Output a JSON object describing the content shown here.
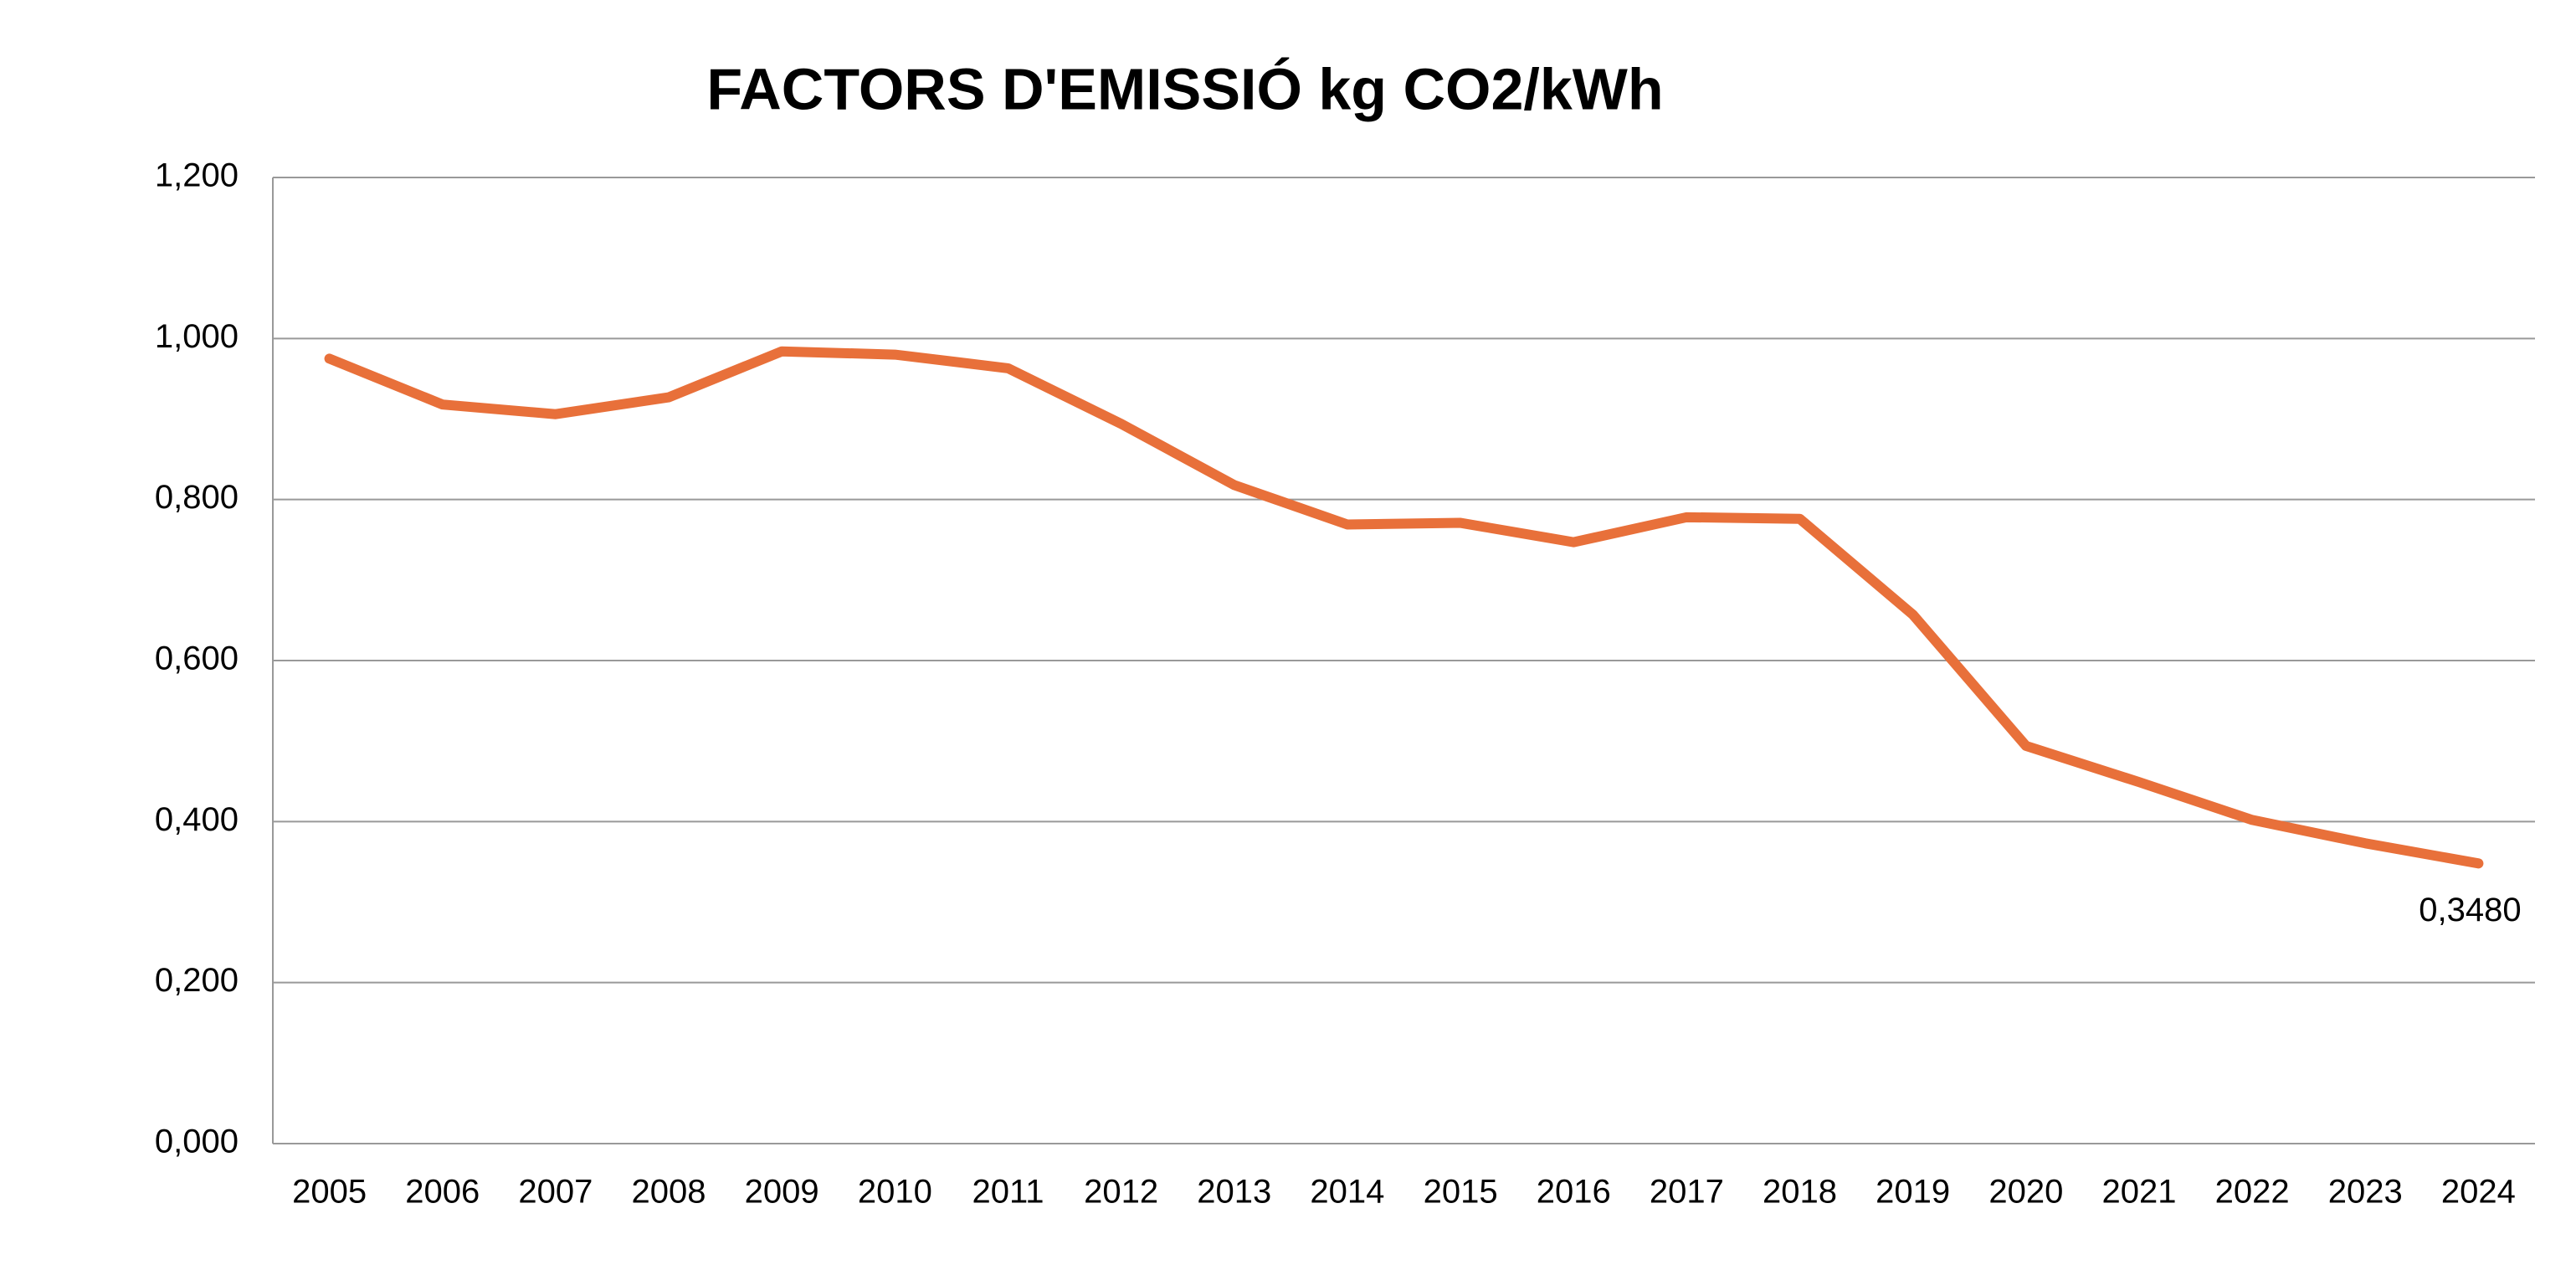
{
  "chart_data": {
    "type": "line",
    "title": "FACTORS D'EMISSIÓ kg CO2/kWh",
    "categories": [
      "2005",
      "2006",
      "2007",
      "2008",
      "2009",
      "2010",
      "2011",
      "2012",
      "2013",
      "2014",
      "2015",
      "2016",
      "2017",
      "2018",
      "2019",
      "2020",
      "2021",
      "2022",
      "2023",
      "2024"
    ],
    "series": [
      {
        "color": "#e8703a",
        "values": [
          0.975,
          0.918,
          0.906,
          0.927,
          0.984,
          0.98,
          0.963,
          0.894,
          0.818,
          0.769,
          0.771,
          0.747,
          0.778,
          0.776,
          0.657,
          0.494,
          0.449,
          0.402,
          0.373,
          0.348
        ],
        "value_labels": [
          null,
          null,
          null,
          null,
          null,
          null,
          null,
          null,
          null,
          null,
          null,
          null,
          null,
          null,
          null,
          null,
          null,
          null,
          null,
          "0,3480"
        ]
      }
    ],
    "ylim": [
      0,
      1.2
    ],
    "yticks": [
      {
        "value": 0,
        "label": "0,000"
      },
      {
        "value": 0.2,
        "label": "0,200"
      },
      {
        "value": 0.4,
        "label": "0,400"
      },
      {
        "value": 0.6,
        "label": "0,600"
      },
      {
        "value": 0.8,
        "label": "0,800"
      },
      {
        "value": 1,
        "label": "1,000"
      },
      {
        "value": 1.2,
        "label": "1,200"
      }
    ],
    "grid": true
  }
}
